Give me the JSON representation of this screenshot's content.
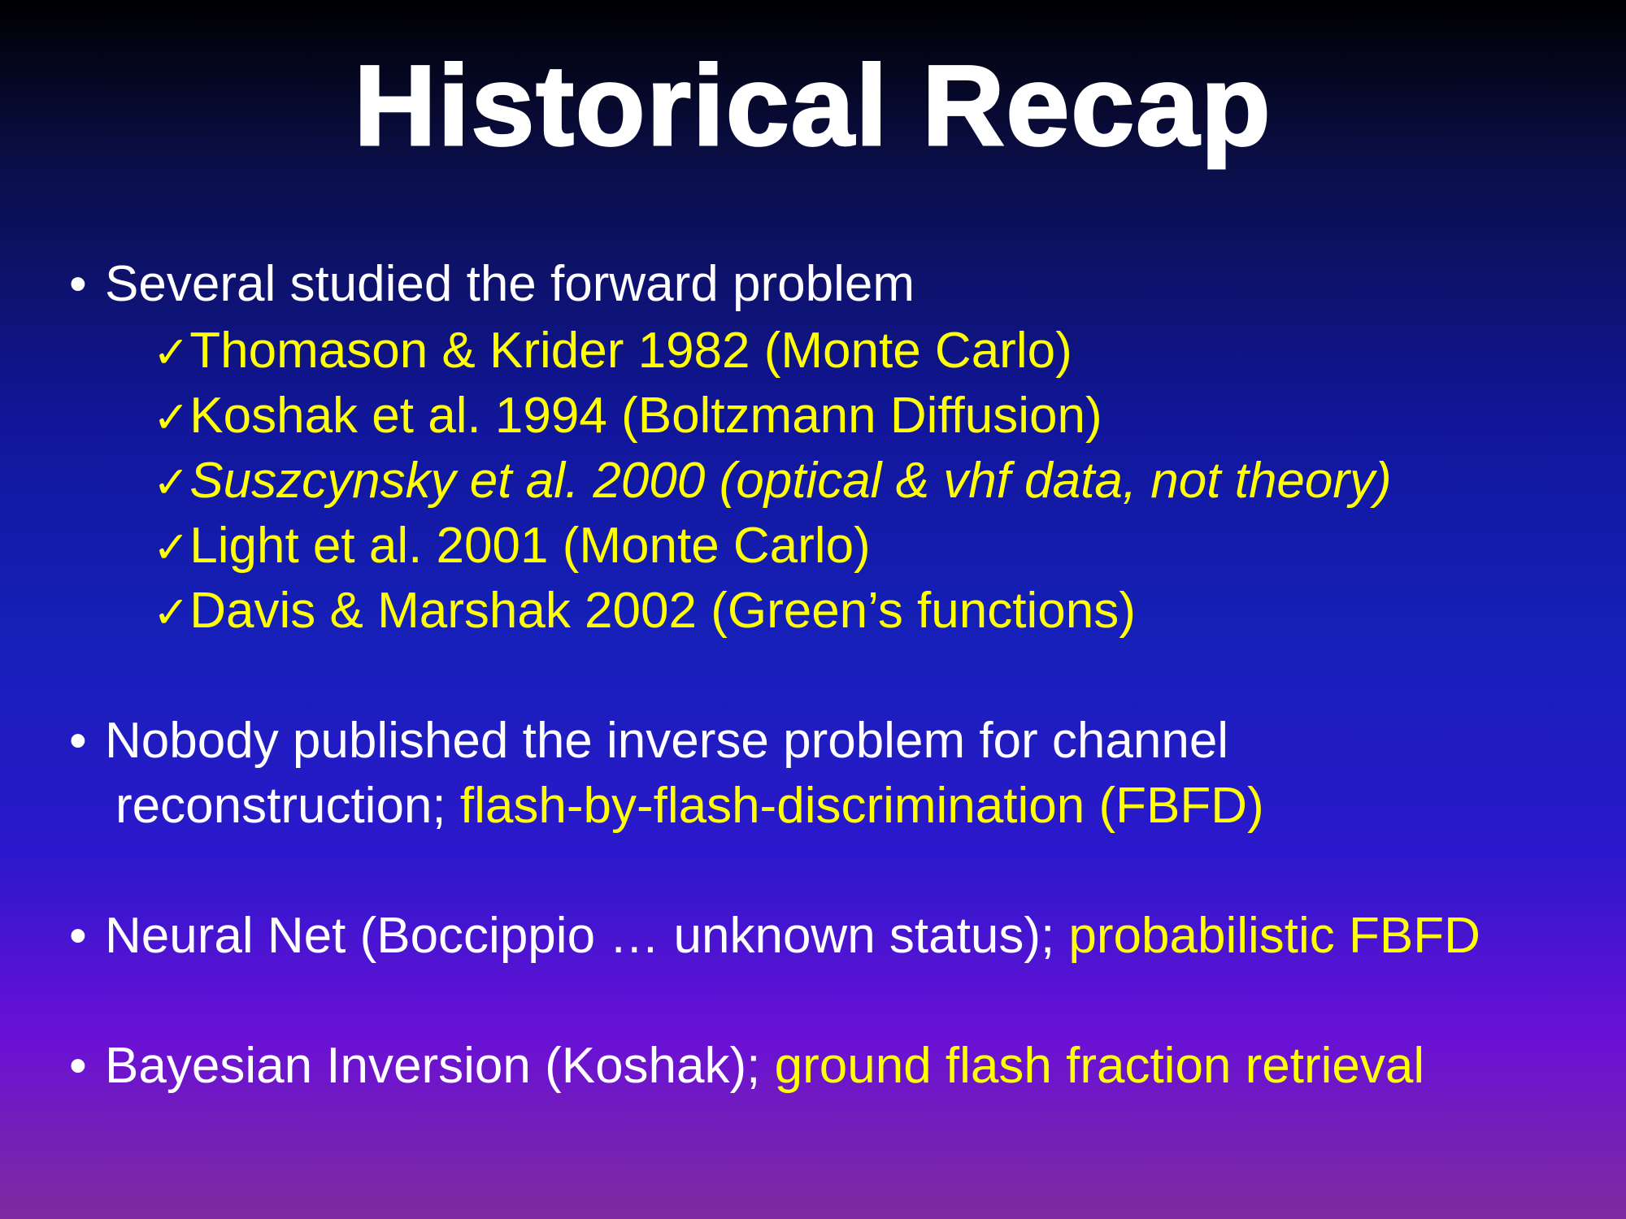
{
  "title": "Historical Recap",
  "bullet_char": "•",
  "check_char": "✓",
  "bullets": [
    {
      "text": "Several studied the forward problem",
      "subitems": [
        {
          "text": "Thomason & Krider 1982 (Monte Carlo)"
        },
        {
          "text": "Koshak et al. 1994 (Boltzmann Diffusion)"
        },
        {
          "text": "Suszcynsky et al. 2000 (optical & vhf data, not theory)"
        },
        {
          "text": "Light et al. 2001 (Monte Carlo)"
        },
        {
          "text": "Davis & Marshak 2002 (Green’s functions)"
        }
      ]
    },
    {
      "text_line1": "Nobody published the inverse problem for channel",
      "text_line2_white": "reconstruction; ",
      "text_line2_yellow": "flash-by-flash-discrimination (FBFD)"
    },
    {
      "text_white": "Neural Net (Boccippio … unknown status);  ",
      "text_yellow": "probabilistic FBFD"
    },
    {
      "text_white": "Bayesian Inversion (Koshak); ",
      "text_yellow": "ground flash fraction retrieval"
    }
  ],
  "colors": {
    "title": "#ffffff",
    "body_text": "#ffffff",
    "highlight": "#ffff00",
    "background_top": "#000000",
    "background_mid": "#1620b8",
    "background_bottom": "#7d2c9f"
  }
}
